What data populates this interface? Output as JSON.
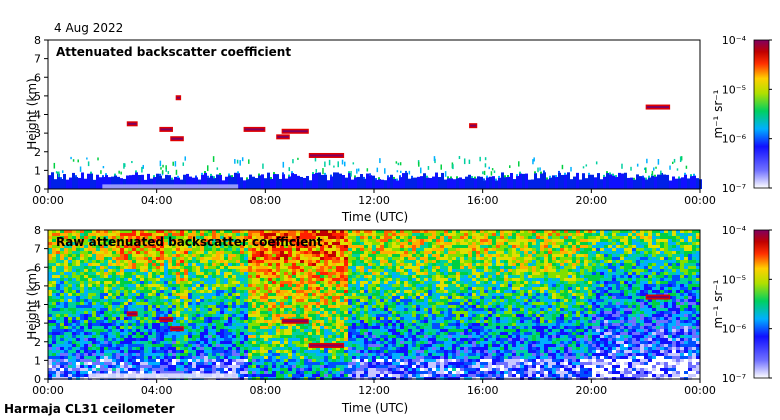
{
  "date_label": "4 Aug 2022",
  "footer_label": "Harmaja CL31 ceilometer",
  "chart_data": [
    {
      "type": "heatmap",
      "title": "Attenuated backscatter coefficient",
      "xlabel": "Time (UTC)",
      "ylabel": "Height (km)",
      "x_ticks": [
        "00:00",
        "04:00",
        "08:00",
        "12:00",
        "16:00",
        "20:00",
        "00:00"
      ],
      "y_ticks": [
        "0",
        "1",
        "2",
        "3",
        "4",
        "5",
        "6",
        "7",
        "8"
      ],
      "xlim_hours": [
        0,
        24
      ],
      "ylim": [
        0,
        8
      ],
      "colorbar": {
        "label": "m⁻¹ sr⁻¹",
        "ticks": [
          "10⁻⁴",
          "10⁻⁵",
          "10⁻⁶",
          "10⁻⁷"
        ],
        "range": [
          1e-07,
          0.0001
        ],
        "scale": "log"
      },
      "cloud_layers": [
        {
          "t0": 2.9,
          "t1": 3.3,
          "h": 3.5
        },
        {
          "t0": 4.1,
          "t1": 4.6,
          "h": 3.2
        },
        {
          "t0": 4.5,
          "t1": 5.0,
          "h": 2.7
        },
        {
          "t0": 4.7,
          "t1": 4.9,
          "h": 4.9
        },
        {
          "t0": 7.2,
          "t1": 8.0,
          "h": 3.2
        },
        {
          "t0": 8.6,
          "t1": 9.6,
          "h": 3.1
        },
        {
          "t0": 8.4,
          "t1": 8.9,
          "h": 2.8
        },
        {
          "t0": 9.6,
          "t1": 10.9,
          "h": 1.8
        },
        {
          "t0": 15.5,
          "t1": 15.8,
          "h": 3.4
        },
        {
          "t0": 22.0,
          "t1": 22.9,
          "h": 4.4
        }
      ]
    },
    {
      "type": "heatmap",
      "title": "Raw attenuated backscatter coefficient",
      "xlabel": "Time (UTC)",
      "ylabel": "Height (km)",
      "x_ticks": [
        "00:00",
        "04:00",
        "08:00",
        "12:00",
        "16:00",
        "20:00",
        "00:00"
      ],
      "y_ticks": [
        "0",
        "1",
        "2",
        "3",
        "4",
        "5",
        "6",
        "7",
        "8"
      ],
      "xlim_hours": [
        0,
        24
      ],
      "ylim": [
        0,
        8
      ],
      "colorbar": {
        "label": "m⁻¹ sr⁻¹",
        "ticks": [
          "10⁻⁴",
          "10⁻⁵",
          "10⁻⁶",
          "10⁻⁷"
        ],
        "range": [
          1e-07,
          0.0001
        ],
        "scale": "log"
      },
      "cloud_layers": [
        {
          "t0": 2.9,
          "t1": 3.3,
          "h": 3.5
        },
        {
          "t0": 4.1,
          "t1": 4.6,
          "h": 3.2
        },
        {
          "t0": 4.5,
          "t1": 5.0,
          "h": 2.7
        },
        {
          "t0": 8.6,
          "t1": 9.6,
          "h": 3.1
        },
        {
          "t0": 9.6,
          "t1": 10.9,
          "h": 1.8
        },
        {
          "t0": 22.0,
          "t1": 22.9,
          "h": 4.4
        }
      ]
    }
  ]
}
